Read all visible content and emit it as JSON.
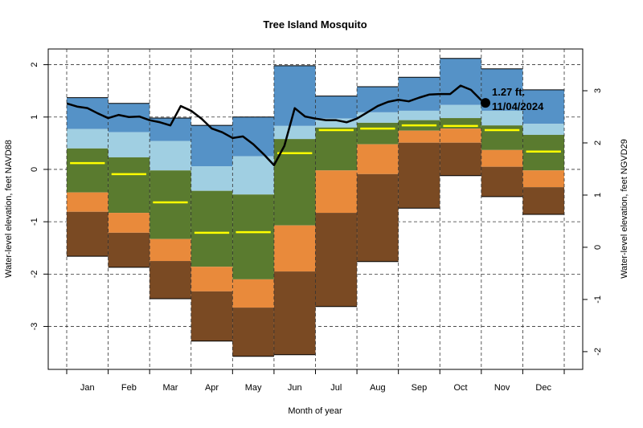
{
  "chart_data": {
    "type": "percentile-bands",
    "title": "Tree Island Mosquito",
    "xlabel": "Month of year",
    "ylabel": "Water-level elevation, feet NAVD88",
    "y2label": "Water-level elevation, feet NGVD29",
    "categories": [
      "Jan",
      "Feb",
      "Mar",
      "Apr",
      "May",
      "Jun",
      "Jul",
      "Aug",
      "Sep",
      "Oct",
      "Nov",
      "Dec"
    ],
    "ylim": [
      -3.82,
      2.3
    ],
    "yticks": [
      -3,
      -2,
      -1,
      0,
      1,
      2
    ],
    "y2lim": [
      -2.34,
      3.8
    ],
    "y2ticks": [
      -2,
      -1,
      0,
      1,
      2,
      3
    ],
    "grid": true,
    "levels": [
      {
        "color": "#5592c7",
        "values": [
          1.37,
          1.26,
          0.98,
          0.84,
          1.0,
          1.98,
          1.4,
          1.58,
          1.76,
          2.12,
          1.92,
          1.52
        ]
      },
      {
        "color": "#a0cfe2",
        "values": [
          0.77,
          0.71,
          0.54,
          0.06,
          0.25,
          0.83,
          0.97,
          1.09,
          1.12,
          1.23,
          1.12,
          0.87
        ]
      },
      {
        "color": "#5a7b2f",
        "values": [
          0.4,
          0.23,
          -0.02,
          -0.41,
          -0.48,
          0.58,
          0.8,
          0.89,
          0.94,
          0.98,
          0.84,
          0.66
        ]
      },
      {
        "color": "#e98a3b",
        "values": [
          -0.44,
          -0.83,
          -1.33,
          -1.86,
          -2.1,
          -1.07,
          -0.02,
          0.48,
          0.74,
          0.78,
          0.37,
          -0.02
        ]
      },
      {
        "color": "#7a4a23",
        "values": [
          -0.81,
          -1.21,
          -1.75,
          -2.33,
          -2.64,
          -1.95,
          -0.83,
          -0.09,
          0.51,
          0.51,
          0.05,
          -0.34
        ]
      },
      {
        "values": [
          -1.66,
          -1.87,
          -2.47,
          -3.28,
          -3.57,
          -3.54,
          -2.62,
          -1.76,
          -0.74,
          -0.12,
          -0.52,
          -0.86
        ]
      }
    ],
    "median": {
      "color": "#ffff00",
      "values": [
        0.12,
        -0.09,
        -0.63,
        -1.21,
        -1.2,
        0.31,
        0.75,
        0.78,
        0.84,
        0.83,
        0.75,
        0.34
      ]
    },
    "line": {
      "color": "#000000",
      "values": [
        1.26,
        1.2,
        1.17,
        1.07,
        0.98,
        1.04,
        1.0,
        1.01,
        0.94,
        0.9,
        0.84,
        1.21,
        1.12,
        0.97,
        0.78,
        0.71,
        0.6,
        0.63,
        0.48,
        0.29,
        0.08,
        0.45,
        1.17,
        1.01,
        0.97,
        0.94,
        0.94,
        0.9,
        0.97,
        1.09,
        1.21,
        1.29,
        1.33,
        1.3,
        1.37,
        1.43,
        1.44,
        1.44,
        1.6,
        1.52,
        1.32
      ]
    },
    "current": {
      "value": 1.27,
      "label": "1.27 ft.",
      "date": "11/04/2024"
    }
  }
}
